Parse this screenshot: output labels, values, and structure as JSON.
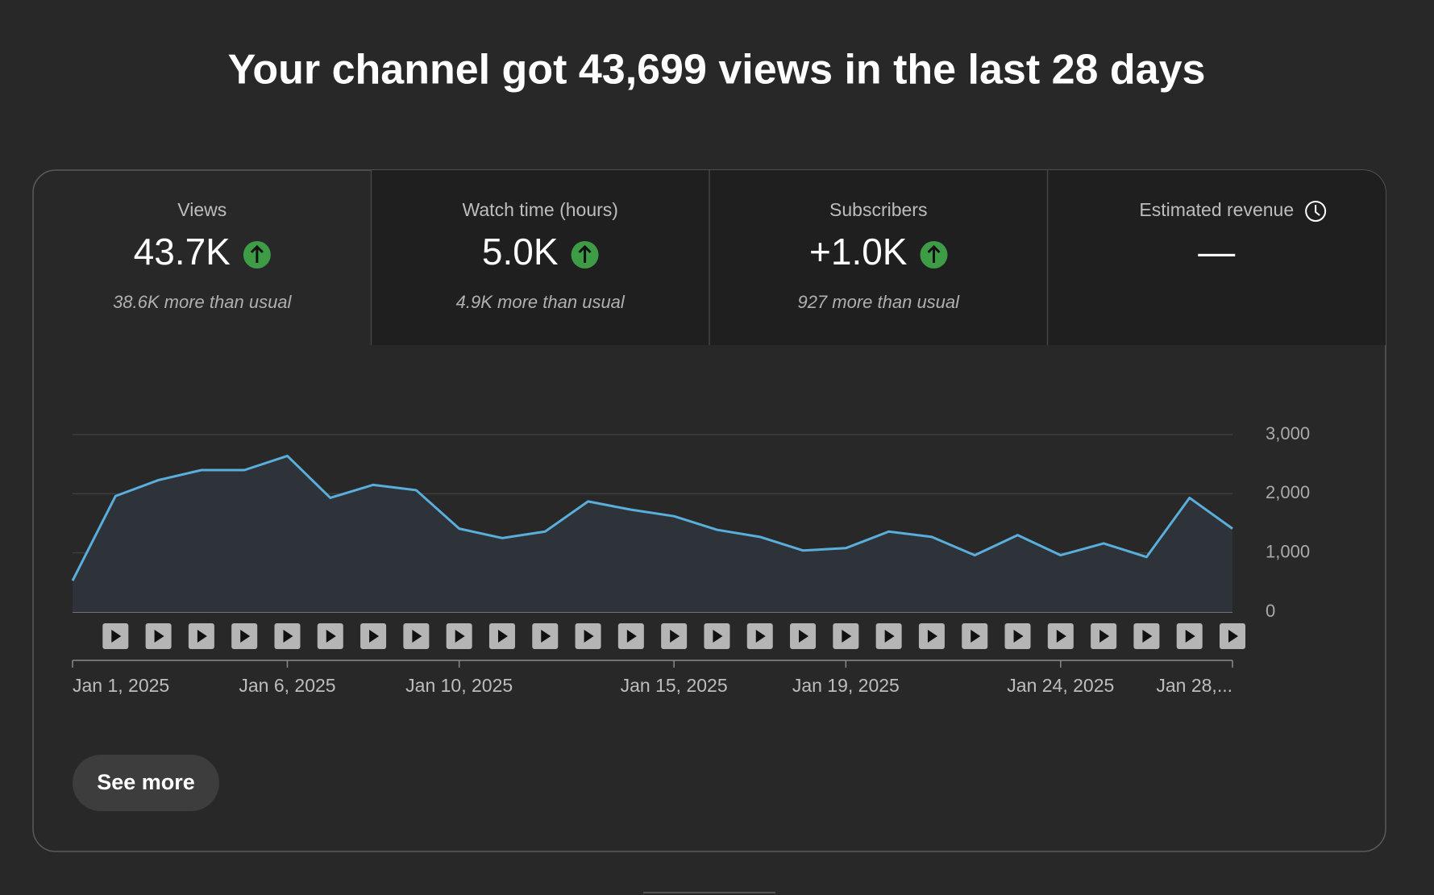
{
  "title": "Your channel got 43,699 views in the last 28 days",
  "cards": [
    {
      "label": "Views",
      "value": "43.7K",
      "trend": "up",
      "note": "38.6K more than usual"
    },
    {
      "label": "Watch time (hours)",
      "value": "5.0K",
      "trend": "up",
      "note": "4.9K more than usual"
    },
    {
      "label": "Subscribers",
      "value": "+1.0K",
      "trend": "up",
      "note": "927 more than usual"
    },
    {
      "label": "Estimated revenue",
      "value": "—"
    }
  ],
  "chart_data": {
    "type": "line",
    "categories": [
      "Jan 1, 2025",
      null,
      null,
      null,
      null,
      "Jan 6, 2025",
      null,
      null,
      null,
      "Jan 10, 2025",
      null,
      null,
      null,
      null,
      "Jan 15, 2025",
      null,
      null,
      null,
      "Jan 19, 2025",
      null,
      null,
      null,
      null,
      "Jan 24, 2025",
      null,
      null,
      null,
      "Jan 28,..."
    ],
    "series": [
      {
        "name": "Views",
        "color": "#5aaedc",
        "values": [
          530,
          1960,
          2230,
          2400,
          2400,
          2640,
          1930,
          2150,
          2060,
          1410,
          1250,
          1360,
          1870,
          1730,
          1620,
          1390,
          1270,
          1040,
          1080,
          1360,
          1270,
          960,
          1300,
          960,
          1160,
          930,
          1930,
          1410
        ]
      }
    ],
    "ylim": [
      0,
      3000
    ],
    "yticks": [
      0,
      {
        "value": 1000,
        "label": "1,000"
      },
      {
        "value": 2000,
        "label": "2,000"
      },
      {
        "value": 3000,
        "label": "3,000"
      }
    ],
    "grid": true
  },
  "button": "See more"
}
